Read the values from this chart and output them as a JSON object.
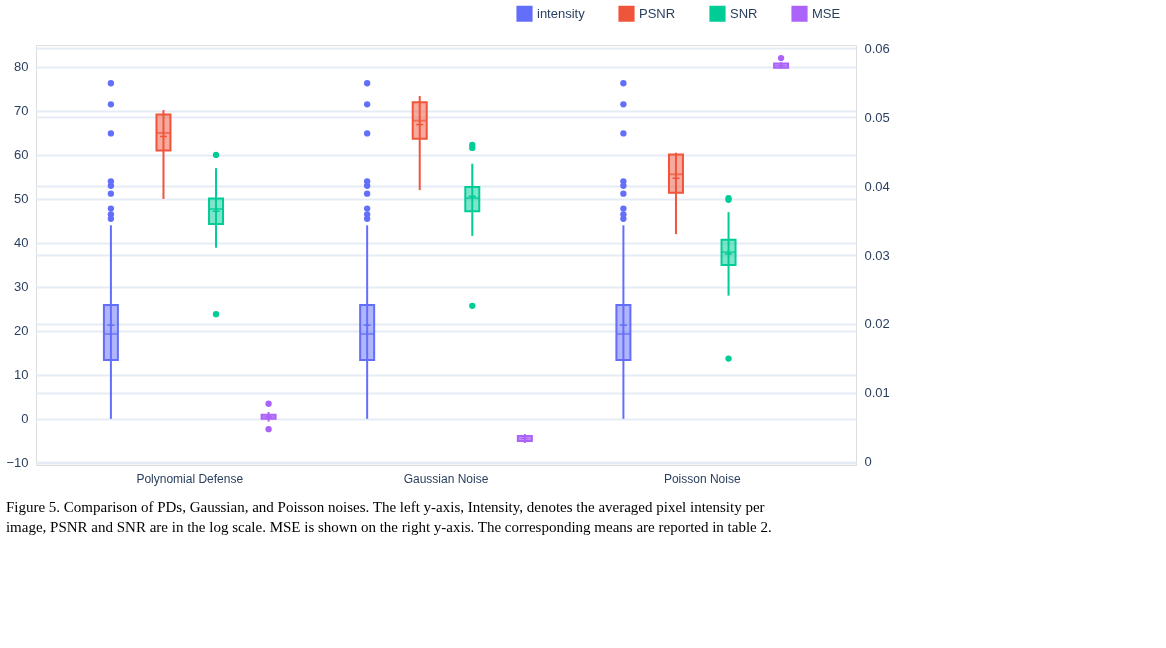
{
  "chart_data": {
    "type": "box",
    "annotations": [
      "Figure 5. Comparison of PDs, Gaussian, and Poisson noises. The left y-axis, Intensity, denotes the averaged pixel intensity per",
      "image, PSNR and SNR are in the log scale. MSE is shown on the right y-axis. The corresponding means are reported in table 2."
    ],
    "categories": [
      "Polynomial Defense",
      "Gaussian Noise",
      "Poisson Noise"
    ],
    "series": [
      {
        "name": "intensity",
        "color": "#636efa",
        "boxes": [
          {
            "low": 0,
            "q1": 13.4,
            "median": 19.3,
            "q3": 25.9,
            "high": 44,
            "mean": 21.3,
            "outliers": [
              45.5,
              46.5,
              47.8,
              51.2,
              53,
              54,
              64.9,
              71.5,
              76.3
            ]
          },
          {
            "low": 0,
            "q1": 13.4,
            "median": 19.3,
            "q3": 25.9,
            "high": 44,
            "mean": 21.3,
            "outliers": [
              45.5,
              46.5,
              47.8,
              51.2,
              53,
              54,
              64.9,
              71.5,
              76.3
            ]
          },
          {
            "low": 0,
            "q1": 13.4,
            "median": 19.3,
            "q3": 25.9,
            "high": 44,
            "mean": 21.3,
            "outliers": [
              45.5,
              46.5,
              47.8,
              51.2,
              53,
              54,
              64.9,
              71.5,
              76.3
            ]
          }
        ]
      },
      {
        "name": "PSNR",
        "color": "#ef553b",
        "boxes": [
          {
            "low": 50,
            "q1": 61.0,
            "median": 65.0,
            "q3": 69.2,
            "high": 70.2,
            "mean": 64.2
          },
          {
            "low": 52,
            "q1": 63.7,
            "median": 67.8,
            "q3": 72.0,
            "high": 73.4,
            "mean": 66.9
          },
          {
            "low": 42,
            "q1": 51.4,
            "median": 55.6,
            "q3": 60.1,
            "high": 60.5,
            "mean": 54.7
          }
        ]
      },
      {
        "name": "SNR",
        "color": "#00cc96",
        "boxes": [
          {
            "low": 38.9,
            "q1": 44.3,
            "median": 47.7,
            "q3": 50.1,
            "high": 57,
            "mean": 47.2,
            "outliers": [
              23.8,
              60
            ]
          },
          {
            "low": 41.6,
            "q1": 47.2,
            "median": 50.2,
            "q3": 52.7,
            "high": 58,
            "mean": 50.6,
            "outliers": [
              25.7,
              61.6,
              62.3
            ]
          },
          {
            "low": 28,
            "q1": 35.0,
            "median": 37.9,
            "q3": 40.7,
            "high": 47,
            "mean": 37.5,
            "outliers": [
              13.7,
              49.8,
              50.2
            ]
          }
        ]
      },
      {
        "name": "MSE",
        "color": "#ab63fa",
        "axis": "y2",
        "boxes": [
          {
            "low": 0.0058,
            "q1": 0.0062,
            "median": 0.0065,
            "q3": 0.0068,
            "high": 0.0072,
            "mean": 0.0065,
            "outliers": [
              0.0047,
              0.0084
            ]
          },
          {
            "low": 0.0027,
            "q1": 0.003,
            "median": 0.00335,
            "q3": 0.0037,
            "high": 0.004,
            "mean": 0.00335
          },
          {
            "low": 0.0571,
            "q1": 0.0572,
            "median": 0.0575,
            "q3": 0.0578,
            "high": 0.058,
            "mean": 0.0575,
            "outliers": [
              0.0586
            ]
          }
        ]
      }
    ],
    "ylim": [
      -10.5,
      85
    ],
    "yticks": [
      -10,
      0,
      10,
      20,
      30,
      40,
      50,
      60,
      70,
      80
    ],
    "y2lim": [
      -0.0005,
      0.0605
    ],
    "y2ticks": [
      0,
      0.01,
      0.02,
      0.03,
      0.04,
      0.05,
      0.06
    ],
    "grid": true,
    "legend": "top right"
  }
}
